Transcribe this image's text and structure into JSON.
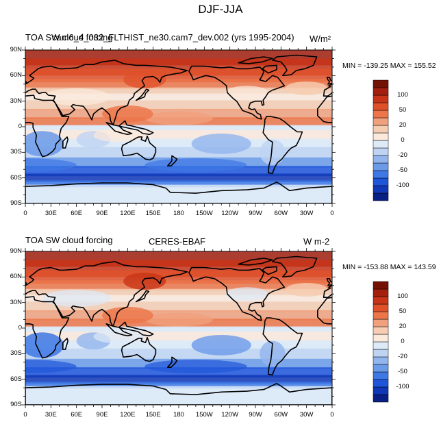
{
  "title": "DJF-JJA",
  "colormap": [
    "#0a1f83",
    "#1037b6",
    "#1f55d9",
    "#3d78e5",
    "#6b9ae8",
    "#92b5ee",
    "#bfd3f2",
    "#ddeaf8",
    "#fbe9dc",
    "#f6cdb2",
    "#f0a07d",
    "#ec7649",
    "#e0512a",
    "#c83417",
    "#a2200d",
    "#741205"
  ],
  "colorbar_labels": [
    "100",
    "50",
    "20",
    "0",
    "-20",
    "-50",
    "-100"
  ],
  "lat_labels": [
    "90N",
    "60N",
    "30N",
    "0",
    "30S",
    "60S",
    "90S"
  ],
  "lon_labels": [
    "0",
    "30E",
    "60E",
    "90E",
    "120E",
    "150E",
    "180",
    "150W",
    "120W",
    "90W",
    "60W",
    "30W",
    "0"
  ],
  "panels": [
    {
      "left_title": "TOA SW cloud forcing",
      "center_title": "cam6_4_032_FLTHIST_ne30.cam7_dev.002 (yrs 1995-2004)",
      "units": "W/m²",
      "minmax": "MIN = -139.25 MAX = 155.52"
    },
    {
      "left_title": "TOA SW cloud forcing",
      "center_title": "CERES-EBAF",
      "units": "W m-2",
      "minmax": "MIN = -153.88 MAX = 143.59"
    }
  ],
  "chart_data": {
    "type": "heatmap",
    "title": "DJF-JJA",
    "variable": "TOA SW cloud forcing",
    "xlim": [
      0,
      360
    ],
    "ylim": [
      -90,
      90
    ],
    "colorbar_ticks": [
      100,
      50,
      20,
      0,
      -20,
      -50,
      -100
    ],
    "maps": [
      {
        "name": "cam6_4_032_FLTHIST_ne30.cam7_dev.002 (yrs 1995-2004)",
        "units": "W/m²",
        "min": -139.25,
        "max": 155.52
      },
      {
        "name": "CERES-EBAF",
        "units": "W m-2",
        "min": -153.88,
        "max": 143.59
      }
    ]
  }
}
